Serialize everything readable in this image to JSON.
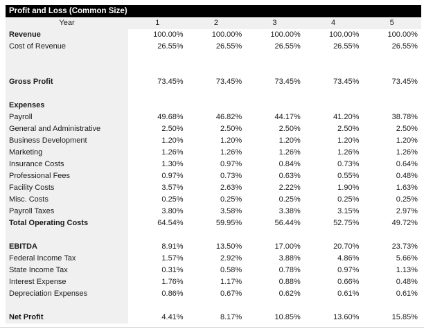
{
  "title": "Profit and Loss (Common Size)",
  "colors": {
    "title_bar_bg": "#000000",
    "title_bar_text": "#ffffff",
    "label_column_bg": "#f0f0f0",
    "data_area_bg": "#ffffff"
  },
  "table": {
    "year_label": "Year",
    "years": [
      "1",
      "2",
      "3",
      "4",
      "5"
    ],
    "rows": [
      {
        "label": "Revenue",
        "bold": true,
        "values": [
          "100.00%",
          "100.00%",
          "100.00%",
          "100.00%",
          "100.00%"
        ]
      },
      {
        "label": "Cost of Revenue",
        "bold": false,
        "values": [
          "26.55%",
          "26.55%",
          "26.55%",
          "26.55%",
          "26.55%"
        ]
      },
      {
        "label": "",
        "bold": false,
        "values": [
          "",
          "",
          "",
          "",
          ""
        ]
      },
      {
        "label": "",
        "bold": false,
        "values": [
          "",
          "",
          "",
          "",
          ""
        ]
      },
      {
        "label": "Gross Profit",
        "bold": true,
        "values": [
          "73.45%",
          "73.45%",
          "73.45%",
          "73.45%",
          "73.45%"
        ]
      },
      {
        "label": "",
        "bold": false,
        "values": [
          "",
          "",
          "",
          "",
          ""
        ]
      },
      {
        "label": "Expenses",
        "bold": true,
        "values": [
          "",
          "",
          "",
          "",
          ""
        ]
      },
      {
        "label": "Payroll",
        "bold": false,
        "values": [
          "49.68%",
          "46.82%",
          "44.17%",
          "41.20%",
          "38.78%"
        ]
      },
      {
        "label": "General and Administrative",
        "bold": false,
        "values": [
          "2.50%",
          "2.50%",
          "2.50%",
          "2.50%",
          "2.50%"
        ]
      },
      {
        "label": "Business Development",
        "bold": false,
        "values": [
          "1.20%",
          "1.20%",
          "1.20%",
          "1.20%",
          "1.20%"
        ]
      },
      {
        "label": "Marketing",
        "bold": false,
        "values": [
          "1.26%",
          "1.26%",
          "1.26%",
          "1.26%",
          "1.26%"
        ]
      },
      {
        "label": "Insurance Costs",
        "bold": false,
        "values": [
          "1.30%",
          "0.97%",
          "0.84%",
          "0.73%",
          "0.64%"
        ]
      },
      {
        "label": "Professional Fees",
        "bold": false,
        "values": [
          "0.97%",
          "0.73%",
          "0.63%",
          "0.55%",
          "0.48%"
        ]
      },
      {
        "label": "Facility Costs",
        "bold": false,
        "values": [
          "3.57%",
          "2.63%",
          "2.22%",
          "1.90%",
          "1.63%"
        ]
      },
      {
        "label": "Misc. Costs",
        "bold": false,
        "values": [
          "0.25%",
          "0.25%",
          "0.25%",
          "0.25%",
          "0.25%"
        ]
      },
      {
        "label": "Payroll Taxes",
        "bold": false,
        "values": [
          "3.80%",
          "3.58%",
          "3.38%",
          "3.15%",
          "2.97%"
        ]
      },
      {
        "label": "Total Operating Costs",
        "bold": true,
        "values": [
          "64.54%",
          "59.95%",
          "56.44%",
          "52.75%",
          "49.72%"
        ]
      },
      {
        "label": "",
        "bold": false,
        "values": [
          "",
          "",
          "",
          "",
          ""
        ]
      },
      {
        "label": "EBITDA",
        "bold": true,
        "values": [
          "8.91%",
          "13.50%",
          "17.00%",
          "20.70%",
          "23.73%"
        ]
      },
      {
        "label": "Federal Income Tax",
        "bold": false,
        "values": [
          "1.57%",
          "2.92%",
          "3.88%",
          "4.86%",
          "5.66%"
        ]
      },
      {
        "label": "State Income Tax",
        "bold": false,
        "values": [
          "0.31%",
          "0.58%",
          "0.78%",
          "0.97%",
          "1.13%"
        ]
      },
      {
        "label": "Interest Expense",
        "bold": false,
        "values": [
          "1.76%",
          "1.17%",
          "0.88%",
          "0.66%",
          "0.48%"
        ]
      },
      {
        "label": "Depreciation Expenses",
        "bold": false,
        "values": [
          "0.86%",
          "0.67%",
          "0.62%",
          "0.61%",
          "0.61%"
        ]
      },
      {
        "label": "",
        "bold": false,
        "values": [
          "",
          "",
          "",
          "",
          ""
        ]
      },
      {
        "label": "Net Profit",
        "bold": true,
        "values": [
          "4.41%",
          "8.17%",
          "10.85%",
          "13.60%",
          "15.85%"
        ]
      }
    ]
  }
}
